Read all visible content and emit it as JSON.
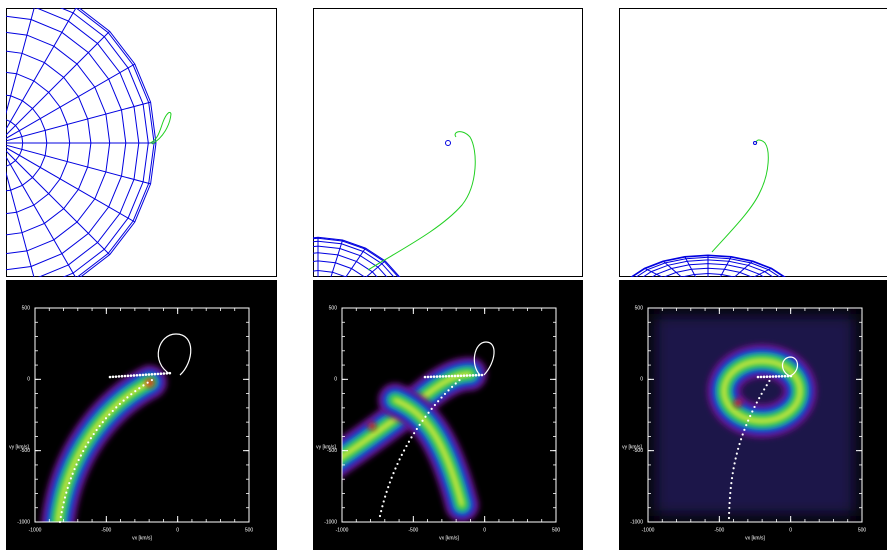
{
  "chart_data": [
    {
      "type": "tomogram",
      "xlabel": "vx [km/s]",
      "ylabel": "vy [km/s]",
      "xlim": [
        -1000,
        500
      ],
      "ylim": [
        -1000,
        500
      ],
      "xticks": [
        -1000,
        -500,
        0,
        500
      ],
      "yticks": [
        -1000,
        -500,
        0,
        500
      ]
    },
    {
      "type": "tomogram",
      "xlabel": "vx [km/s]",
      "ylabel": "vy [km/s]",
      "xlim": [
        -1000,
        500
      ],
      "ylim": [
        -1000,
        500
      ],
      "xticks": [
        -1000,
        -500,
        0,
        500
      ],
      "yticks": [
        -1000,
        -500,
        0,
        500
      ]
    },
    {
      "type": "tomogram",
      "xlabel": "vx [km/s]",
      "ylabel": "vy [km/s]",
      "xlim": [
        -1000,
        500
      ],
      "ylim": [
        -1000,
        500
      ],
      "xticks": [
        -1000,
        -500,
        0,
        500
      ],
      "yticks": [
        -1000,
        -500,
        0,
        500
      ]
    }
  ]
}
